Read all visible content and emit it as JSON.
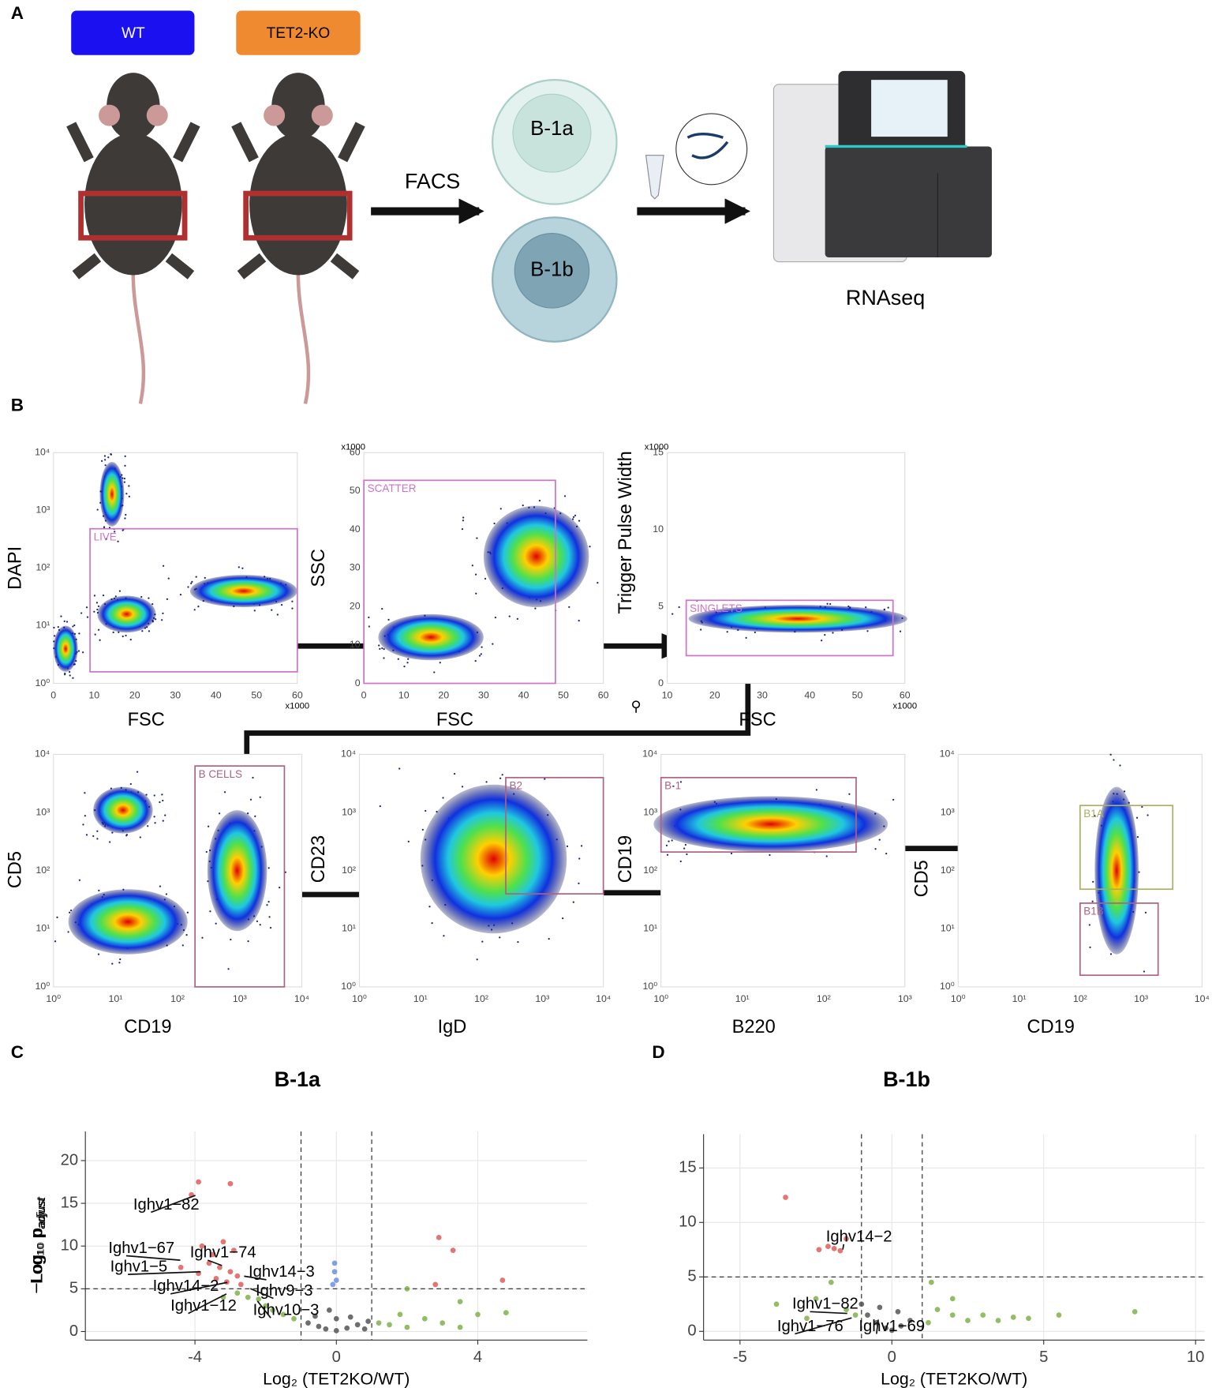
{
  "panel_labels": [
    "A",
    "B",
    "C",
    "D"
  ],
  "panel_a": {
    "groups": [
      "WT",
      "TET2-KO"
    ],
    "step": "FACS",
    "populations": [
      "B-1a",
      "B-1b"
    ],
    "method": "RNAseq"
  },
  "panel_b": {
    "plots": [
      {
        "y_label": "DAPI",
        "x_label": "FSC",
        "gates": [
          "LIVE"
        ],
        "yticks": [
          "10⁰",
          "10¹",
          "10²",
          "10³",
          "10⁴"
        ],
        "xticks": [
          "0",
          "10",
          "20",
          "30",
          "40",
          "50",
          "60"
        ],
        "x_unit": "x1000"
      },
      {
        "y_label": "SSC",
        "x_label": "FSC",
        "gates": [
          "SCATTER"
        ],
        "yticks": [
          "0",
          "10",
          "20",
          "30",
          "40",
          "50",
          "60"
        ],
        "y_unit": "x1000",
        "xticks": [
          "0",
          "10",
          "20",
          "30",
          "40",
          "50",
          "60"
        ]
      },
      {
        "y_label": "Trigger Pulse Width",
        "x_label": "FSC",
        "gates": [
          "SINGLETS"
        ],
        "yticks": [
          "0",
          "5",
          "10",
          "15"
        ],
        "y_unit": "x1000",
        "xticks": [
          "10",
          "20",
          "30",
          "40",
          "50",
          "60"
        ],
        "x_unit": "x1000"
      },
      {
        "y_label": "CD5",
        "x_label": "CD19",
        "gates": [
          "B CELLS"
        ],
        "yticks": [
          "10⁰",
          "10¹",
          "10²",
          "10³",
          "10⁴"
        ],
        "xticks": [
          "10⁰",
          "10¹",
          "10²",
          "10³",
          "10⁴"
        ]
      },
      {
        "y_label": "CD23",
        "x_label": "IgD",
        "gates": [
          "B2"
        ],
        "yticks": [
          "10⁰",
          "10¹",
          "10²",
          "10³",
          "10⁴"
        ],
        "xticks": [
          "10⁰",
          "10¹",
          "10²",
          "10³",
          "10⁴"
        ]
      },
      {
        "y_label": "CD19",
        "x_label": "B220",
        "gates": [
          "B-1"
        ],
        "yticks": [
          "10⁰",
          "10¹",
          "10²",
          "10³",
          "10⁴"
        ],
        "xticks": [
          "10⁰",
          "10¹",
          "10²",
          "10³"
        ]
      },
      {
        "y_label": "CD5",
        "x_label": "CD19",
        "gates": [
          "B1A",
          "B1B"
        ],
        "yticks": [
          "10⁰",
          "10¹",
          "10²",
          "10³",
          "10⁴"
        ],
        "xticks": [
          "10⁰",
          "10¹",
          "10²",
          "10³",
          "10⁴"
        ]
      }
    ]
  },
  "chart_data": [
    {
      "type": "scatter",
      "title": "B-1a",
      "x_label": "Log₂ (TET2KO/WT)",
      "y_label": "−Log₁₀ p",
      "y_label_sub": "adjust",
      "xlim": [
        -7.1,
        7.1
      ],
      "ylim": [
        -1,
        23.4
      ],
      "xticks": [
        -4,
        0,
        4
      ],
      "yticks": [
        0,
        5,
        10,
        15,
        20
      ],
      "grid": true,
      "thresholds": {
        "x": [
          -1,
          1
        ],
        "y": 5
      },
      "series": [
        {
          "color": "#e05c5c",
          "x": [
            -4.1,
            -3.9,
            -3.0,
            -3.8,
            -3.5,
            -3.2,
            -2.9,
            -3.6,
            -3.3,
            -3.0,
            -2.8,
            -3.4,
            -3.9,
            -4.4,
            -3.1,
            -2.7,
            2.9,
            3.3,
            2.8,
            4.7
          ],
          "values": [
            16,
            17.5,
            17.3,
            10,
            9,
            10.5,
            9.5,
            8,
            7.5,
            7,
            6.5,
            6.2,
            6.8,
            7.5,
            5.8,
            5.5,
            11,
            9.5,
            5.5,
            6
          ]
        },
        {
          "color": "#6b8fe0",
          "x": [
            -0.05,
            -0.05,
            0,
            -0.1
          ],
          "values": [
            8,
            7,
            6,
            5.5
          ]
        },
        {
          "color": "#7fb24a",
          "x": [
            -2.8,
            -2.5,
            -2.2,
            -2.0,
            -1.8,
            -1.5,
            -1.2,
            -3.2,
            1.2,
            1.5,
            2.0,
            2.5,
            3.0,
            3.5,
            4.0,
            4.8,
            2.0,
            3.5,
            1.8
          ],
          "values": [
            4.5,
            4,
            3.8,
            3,
            2.5,
            2,
            1.5,
            4,
            1,
            0.8,
            0.5,
            1.5,
            1,
            0.5,
            2,
            2.2,
            5,
            3.5,
            2
          ]
        },
        {
          "color": "#555555",
          "x": [
            -0.8,
            -0.5,
            -0.3,
            0,
            0.3,
            0.6,
            0.9,
            0,
            -0.2,
            0.4,
            -0.6,
            0.8
          ],
          "values": [
            1,
            0.6,
            0.3,
            0.1,
            0.4,
            0.8,
            1.2,
            1.5,
            2.5,
            1.7,
            1.8,
            0.3
          ]
        }
      ],
      "annotations": [
        "Ighv1−82",
        "Ighv1−67",
        "Ighv1−74",
        "Ighv1−5",
        "Ighv14−3",
        "Ighv14−2",
        "Ighv9−3",
        "Ighv1−12",
        "Ighv10−3"
      ]
    },
    {
      "type": "scatter",
      "title": "B-1b",
      "x_label": "Log₂ (TET2KO/WT)",
      "y_label": "−Log₁₀ p",
      "y_label_sub": "adjust",
      "xlim": [
        -6.2,
        10.3
      ],
      "ylim": [
        -0.8,
        18.1
      ],
      "xticks": [
        -5,
        0,
        5,
        10
      ],
      "yticks": [
        0,
        5,
        10,
        15
      ],
      "grid": true,
      "thresholds": {
        "x": [
          -1,
          1
        ],
        "y": 5
      },
      "series": [
        {
          "color": "#e05c5c",
          "x": [
            -3.5,
            -2.4,
            -2.1,
            -1.9,
            -1.7,
            -1.5
          ],
          "values": [
            12.3,
            7.5,
            7.8,
            7.6,
            7.4,
            8.5
          ]
        },
        {
          "color": "#7fb24a",
          "x": [
            -3.8,
            -2.5,
            -2,
            -1.5,
            -1.2,
            1.3,
            1.5,
            2,
            2.5,
            3,
            3.5,
            4,
            4.5,
            5.5,
            8,
            2,
            -2.8,
            1.2
          ],
          "values": [
            2.5,
            3,
            4.5,
            2,
            1.5,
            4.5,
            2,
            1.5,
            1,
            1.5,
            1,
            1.3,
            1.2,
            1.5,
            1.8,
            3,
            1.2,
            0.8
          ]
        },
        {
          "color": "#555555",
          "x": [
            -0.8,
            -0.5,
            -0.2,
            0,
            0.3,
            0.6,
            -1,
            0.2,
            -0.4
          ],
          "values": [
            1.5,
            0.8,
            0.3,
            0.1,
            0.5,
            1,
            2.5,
            1.8,
            2.2
          ]
        }
      ],
      "annotations": [
        "Ighv14−2",
        "Ighv1−82",
        "Ighv1−76",
        "Ighv1−69"
      ]
    }
  ]
}
